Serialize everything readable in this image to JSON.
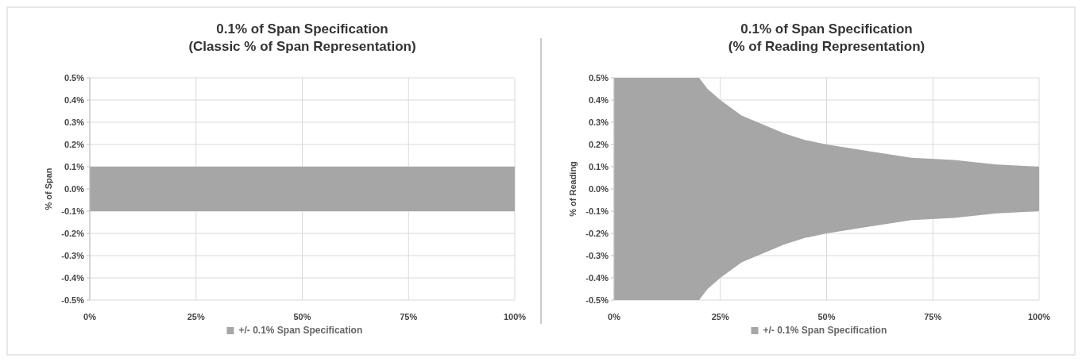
{
  "chart_data": [
    {
      "type": "area",
      "title": "0.1% of Span Specification\n(Classic % of Span Representation)",
      "ylabel": "% of Span",
      "x": [
        0,
        100
      ],
      "series": [
        {
          "name": "+/- 0.1% Span Specification",
          "color": "#a6a6a6",
          "values": [
            0.1,
            0.1
          ]
        },
        {
          "color": "#a6a6a6",
          "values": [
            -0.1,
            -0.1
          ]
        }
      ],
      "xlim": [
        0,
        100
      ],
      "xticks": [
        {
          "value": 0,
          "label": "0%"
        },
        {
          "value": 25,
          "label": "25%"
        },
        {
          "value": 50,
          "label": "50%"
        },
        {
          "value": 75,
          "label": "75%"
        },
        {
          "value": 100,
          "label": "100%"
        }
      ],
      "ylim": [
        -0.5,
        0.5
      ],
      "yticks": [
        {
          "value": 0.5,
          "label": "0.5%"
        },
        {
          "value": 0.4,
          "label": "0.4%"
        },
        {
          "value": 0.3,
          "label": "0.3%"
        },
        {
          "value": 0.2,
          "label": "0.2%"
        },
        {
          "value": 0.1,
          "label": "0.1%"
        },
        {
          "value": 0,
          "label": "0.0%"
        },
        {
          "value": -0.1,
          "label": "-0.1%"
        },
        {
          "value": -0.2,
          "label": "-0.2%"
        },
        {
          "value": -0.3,
          "label": "-0.3%"
        },
        {
          "value": -0.4,
          "label": "-0.4%"
        },
        {
          "value": -0.5,
          "label": "-0.5%"
        }
      ],
      "grid": true,
      "legend": "bottom"
    },
    {
      "type": "area",
      "title": "0.1% of Span Specification\n(% of Reading Representation)",
      "ylabel": "% of Reading",
      "x": [
        0,
        20,
        22,
        25,
        30,
        35,
        40,
        45,
        50,
        60,
        70,
        80,
        90,
        100
      ],
      "series": [
        {
          "name": "+/- 0.1% Span Specification",
          "color": "#a6a6a6",
          "values": [
            0.5,
            0.5,
            0.45,
            0.4,
            0.33,
            0.29,
            0.25,
            0.22,
            0.2,
            0.17,
            0.14,
            0.13,
            0.11,
            0.1
          ]
        },
        {
          "color": "#a6a6a6",
          "values": [
            -0.5,
            -0.5,
            -0.45,
            -0.4,
            -0.33,
            -0.29,
            -0.25,
            -0.22,
            -0.2,
            -0.17,
            -0.14,
            -0.13,
            -0.11,
            -0.1
          ]
        }
      ],
      "xlim": [
        0,
        100
      ],
      "xticks": [
        {
          "value": 0,
          "label": "0%"
        },
        {
          "value": 25,
          "label": "25%"
        },
        {
          "value": 50,
          "label": "50%"
        },
        {
          "value": 75,
          "label": "75%"
        },
        {
          "value": 100,
          "label": "100%"
        }
      ],
      "ylim": [
        -0.5,
        0.5
      ],
      "yticks": [
        {
          "value": 0.5,
          "label": "0.5%"
        },
        {
          "value": 0.4,
          "label": "0.4%"
        },
        {
          "value": 0.3,
          "label": "0.3%"
        },
        {
          "value": 0.2,
          "label": "0.2%"
        },
        {
          "value": 0.1,
          "label": "0.1%"
        },
        {
          "value": 0,
          "label": "0.0%"
        },
        {
          "value": -0.1,
          "label": "-0.1%"
        },
        {
          "value": -0.2,
          "label": "-0.2%"
        },
        {
          "value": -0.3,
          "label": "-0.3%"
        },
        {
          "value": -0.4,
          "label": "-0.4%"
        },
        {
          "value": -0.5,
          "label": "-0.5%"
        }
      ],
      "grid": true,
      "legend": "bottom"
    }
  ]
}
